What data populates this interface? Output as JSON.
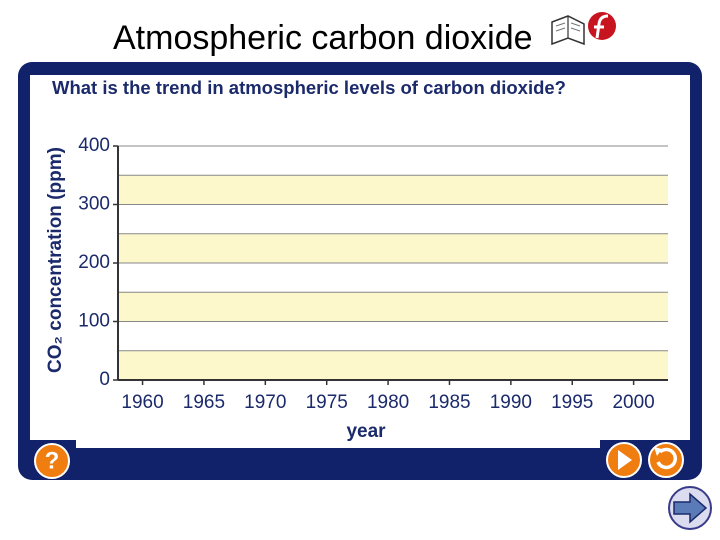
{
  "slide_title": "Atmospheric carbon dioxide",
  "chart_data": {
    "type": "line",
    "title": "What is the trend in atmospheric levels of carbon dioxide?",
    "xlabel": "year",
    "ylabel": "CO₂ concentration (ppm)",
    "xlim": [
      1958,
      2002.8
    ],
    "xticks": [
      1960,
      1965,
      1970,
      1975,
      1980,
      1985,
      1990,
      1995,
      2000
    ],
    "ylim": [
      0,
      400
    ],
    "yticks": [
      0,
      100,
      200,
      300,
      400
    ],
    "minor_yticks": [
      50,
      150,
      250,
      350
    ],
    "grid": true,
    "band_color": "#fcf8cc"
  }
}
